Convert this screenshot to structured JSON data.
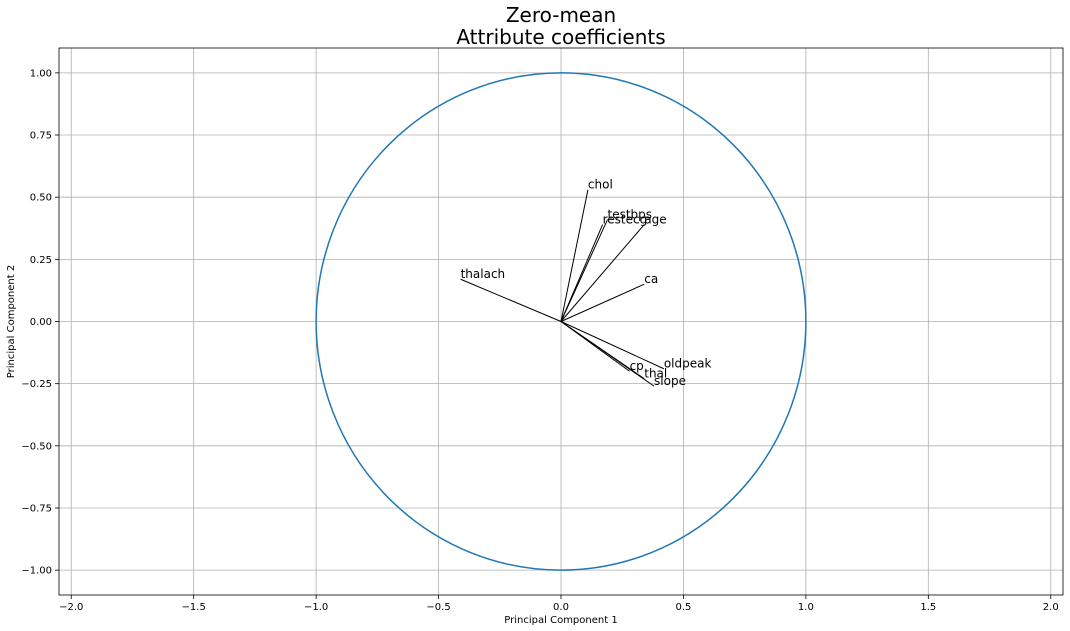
{
  "chart_data": {
    "type": "scatter",
    "title_lines": [
      "Zero-mean",
      "Attribute coefficients"
    ],
    "xlabel": "Principal Component 1",
    "ylabel": "Principal Component 2",
    "xlim": [
      -2.05,
      2.05
    ],
    "ylim": [
      -1.1,
      1.1
    ],
    "xticks": [
      -2.0,
      -1.5,
      -1.0,
      -0.5,
      0.0,
      0.5,
      1.0,
      1.5,
      2.0
    ],
    "xtick_labels": [
      "−2.0",
      "−1.5",
      "−1.0",
      "−0.5",
      "0.0",
      "0.5",
      "1.0",
      "1.5",
      "2.0"
    ],
    "yticks": [
      1.0,
      0.75,
      0.5,
      0.25,
      0.0,
      -0.25,
      -0.5,
      -0.75,
      -1.0
    ],
    "ytick_labels": [
      "1.00",
      "0.75",
      "0.50",
      "0.25",
      "0.00",
      "−0.25",
      "−0.50",
      "−0.75",
      "−1.00"
    ],
    "grid": true,
    "unit_circle": {
      "radius": 1.0,
      "color": "#1f77b4"
    },
    "vectors": [
      {
        "label": "chol",
        "x": 0.11,
        "y": 0.53
      },
      {
        "label": "testbps",
        "x": 0.19,
        "y": 0.41
      },
      {
        "label": "restecg",
        "x": 0.17,
        "y": 0.39
      },
      {
        "label": "age",
        "x": 0.34,
        "y": 0.39
      },
      {
        "label": "thalach",
        "x": -0.41,
        "y": 0.17
      },
      {
        "label": "ca",
        "x": 0.34,
        "y": 0.15
      },
      {
        "label": "oldpeak",
        "x": 0.42,
        "y": -0.19
      },
      {
        "label": "cp",
        "x": 0.28,
        "y": -0.2
      },
      {
        "label": "thal",
        "x": 0.34,
        "y": -0.23
      },
      {
        "label": "slope",
        "x": 0.38,
        "y": -0.26
      }
    ]
  }
}
